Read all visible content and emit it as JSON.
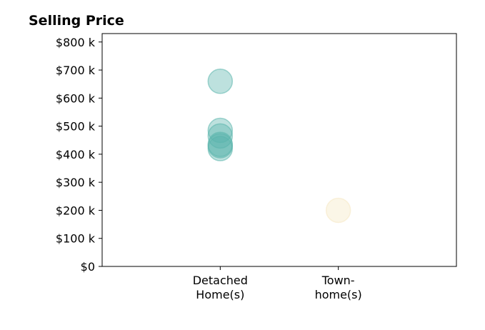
{
  "chart_data": {
    "type": "scatter",
    "title": "Selling Price",
    "xlabel": "",
    "ylabel": "",
    "categories": [
      {
        "lines": [
          "Detached",
          "Home(s)"
        ]
      },
      {
        "lines": [
          "Town-",
          "home(s)"
        ]
      }
    ],
    "x_range": [
      -1,
      2
    ],
    "ylim": [
      0,
      830000
    ],
    "y_ticks": [
      {
        "value": 0,
        "label": "$0"
      },
      {
        "value": 100000,
        "label": "$100 k"
      },
      {
        "value": 200000,
        "label": "$200 k"
      },
      {
        "value": 300000,
        "label": "$300 k"
      },
      {
        "value": 400000,
        "label": "$400 k"
      },
      {
        "value": 500000,
        "label": "$500 k"
      },
      {
        "value": 600000,
        "label": "$600 k"
      },
      {
        "value": 700000,
        "label": "$700 k"
      },
      {
        "value": 800000,
        "label": "$800 k"
      }
    ],
    "grid": false,
    "legend": "none",
    "series": [
      {
        "category_index": 0,
        "color": "#5ab4ac",
        "values": [
          660000,
          485000,
          465000,
          435000,
          430000,
          420000
        ]
      },
      {
        "category_index": 1,
        "color": "#f6e8c3",
        "values": [
          200000
        ]
      }
    ]
  }
}
